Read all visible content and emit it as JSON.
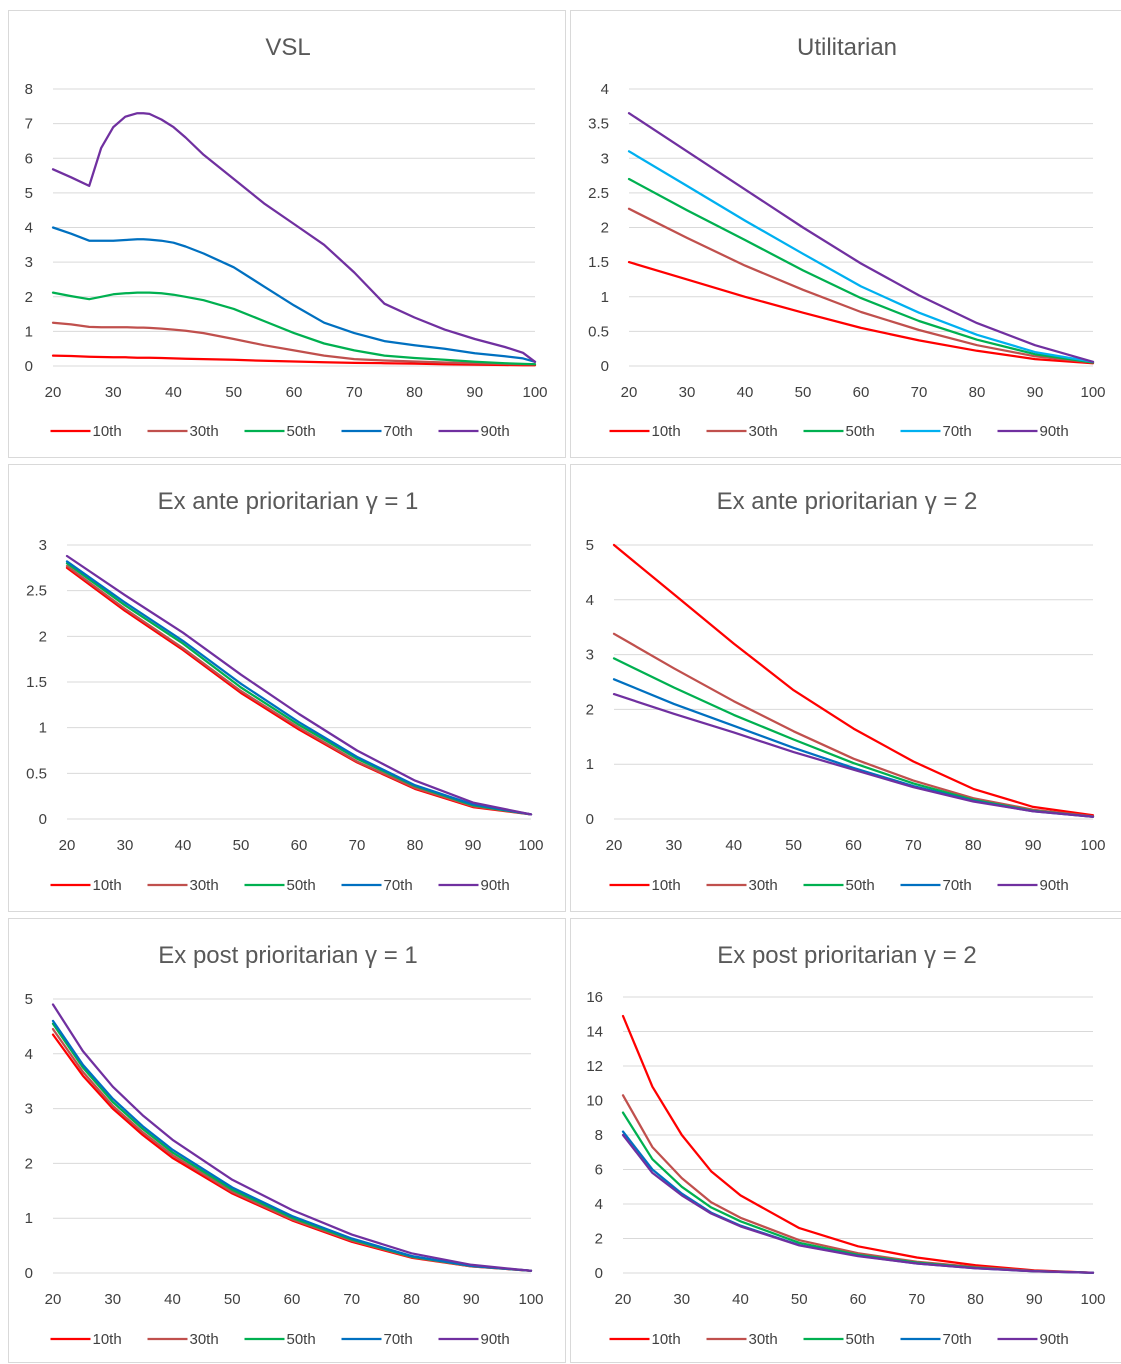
{
  "chart_data": [
    {
      "type": "line",
      "title": "VSL",
      "ylim": [
        0,
        8
      ],
      "yticks": [
        "0",
        "1",
        "2",
        "3",
        "4",
        "5",
        "6",
        "7",
        "8"
      ],
      "xticks": [
        "20",
        "30",
        "40",
        "50",
        "60",
        "70",
        "80",
        "90",
        "100"
      ],
      "x": [
        20,
        23,
        26,
        28,
        30,
        32,
        34,
        35,
        36,
        38,
        40,
        42,
        45,
        50,
        55,
        60,
        65,
        70,
        75,
        80,
        85,
        90,
        95,
        98,
        100
      ],
      "series": [
        {
          "name": "10th",
          "color": "#ff0000",
          "values": [
            0.3,
            0.29,
            0.27,
            0.26,
            0.25,
            0.25,
            0.24,
            0.24,
            0.24,
            0.23,
            0.22,
            0.21,
            0.2,
            0.18,
            0.15,
            0.13,
            0.11,
            0.09,
            0.08,
            0.07,
            0.05,
            0.04,
            0.03,
            0.02,
            0.02
          ]
        },
        {
          "name": "30th",
          "color": "#c0504d",
          "values": [
            1.25,
            1.2,
            1.13,
            1.12,
            1.12,
            1.12,
            1.11,
            1.11,
            1.1,
            1.08,
            1.05,
            1.02,
            0.95,
            0.78,
            0.6,
            0.45,
            0.3,
            0.2,
            0.16,
            0.13,
            0.1,
            0.08,
            0.06,
            0.05,
            0.05
          ]
        },
        {
          "name": "50th",
          "color": "#00b050",
          "values": [
            2.12,
            2.02,
            1.93,
            2.0,
            2.07,
            2.1,
            2.12,
            2.12,
            2.12,
            2.1,
            2.06,
            2.0,
            1.9,
            1.65,
            1.3,
            0.95,
            0.65,
            0.45,
            0.3,
            0.23,
            0.18,
            0.12,
            0.08,
            0.06,
            0.05
          ]
        },
        {
          "name": "70th",
          "color": "#0070c0",
          "values": [
            4.0,
            3.82,
            3.62,
            3.62,
            3.62,
            3.64,
            3.66,
            3.66,
            3.65,
            3.62,
            3.56,
            3.45,
            3.25,
            2.85,
            2.3,
            1.75,
            1.25,
            0.95,
            0.72,
            0.6,
            0.5,
            0.37,
            0.28,
            0.22,
            0.12
          ]
        },
        {
          "name": "90th",
          "color": "#7030a0",
          "values": [
            5.68,
            5.45,
            5.2,
            6.3,
            6.9,
            7.2,
            7.3,
            7.3,
            7.28,
            7.12,
            6.9,
            6.6,
            6.1,
            5.4,
            4.7,
            4.1,
            3.5,
            2.7,
            1.8,
            1.4,
            1.05,
            0.78,
            0.55,
            0.38,
            0.12
          ]
        }
      ]
    },
    {
      "type": "line",
      "title": "Utilitarian",
      "ylim": [
        0,
        4
      ],
      "yticks": [
        "0",
        "0.5",
        "1",
        "1.5",
        "2",
        "2.5",
        "3",
        "3.5",
        "4"
      ],
      "xticks": [
        "20",
        "30",
        "40",
        "50",
        "60",
        "70",
        "80",
        "90",
        "100"
      ],
      "x": [
        20,
        30,
        40,
        50,
        60,
        70,
        80,
        90,
        100
      ],
      "series": [
        {
          "name": "10th",
          "color": "#ff0000",
          "values": [
            1.5,
            1.25,
            1.0,
            0.77,
            0.55,
            0.37,
            0.22,
            0.1,
            0.04
          ]
        },
        {
          "name": "30th",
          "color": "#c0504d",
          "values": [
            2.27,
            1.85,
            1.45,
            1.1,
            0.78,
            0.52,
            0.3,
            0.14,
            0.05
          ]
        },
        {
          "name": "50th",
          "color": "#00b050",
          "values": [
            2.7,
            2.25,
            1.82,
            1.38,
            0.98,
            0.65,
            0.38,
            0.17,
            0.05
          ]
        },
        {
          "name": "70th",
          "color": "#00b0f0",
          "values": [
            3.1,
            2.6,
            2.1,
            1.62,
            1.15,
            0.77,
            0.45,
            0.2,
            0.06
          ]
        },
        {
          "name": "90th",
          "color": "#7030a0",
          "values": [
            3.65,
            3.1,
            2.55,
            2.0,
            1.48,
            1.02,
            0.62,
            0.3,
            0.06
          ]
        }
      ]
    },
    {
      "type": "line",
      "title": "Ex ante prioritarian γ = 1",
      "ylim": [
        0,
        3
      ],
      "yticks": [
        "0",
        "0.5",
        "1",
        "1.5",
        "2",
        "2.5",
        "3"
      ],
      "xticks": [
        "20",
        "30",
        "40",
        "50",
        "60",
        "70",
        "80",
        "90",
        "100"
      ],
      "x": [
        20,
        30,
        40,
        50,
        60,
        70,
        80,
        90,
        100
      ],
      "series": [
        {
          "name": "10th",
          "color": "#ff0000",
          "values": [
            2.75,
            2.28,
            1.85,
            1.38,
            0.98,
            0.62,
            0.33,
            0.13,
            0.05
          ]
        },
        {
          "name": "30th",
          "color": "#c0504d",
          "values": [
            2.77,
            2.3,
            1.87,
            1.4,
            1.0,
            0.63,
            0.34,
            0.14,
            0.05
          ]
        },
        {
          "name": "50th",
          "color": "#00b050",
          "values": [
            2.8,
            2.34,
            1.92,
            1.44,
            1.03,
            0.66,
            0.36,
            0.15,
            0.05
          ]
        },
        {
          "name": "70th",
          "color": "#0070c0",
          "values": [
            2.82,
            2.37,
            1.95,
            1.48,
            1.06,
            0.68,
            0.37,
            0.16,
            0.05
          ]
        },
        {
          "name": "90th",
          "color": "#7030a0",
          "values": [
            2.88,
            2.45,
            2.04,
            1.58,
            1.15,
            0.75,
            0.42,
            0.18,
            0.05
          ]
        }
      ]
    },
    {
      "type": "line",
      "title": "Ex ante prioritarian γ = 2",
      "ylim": [
        0,
        5
      ],
      "yticks": [
        "0",
        "1",
        "2",
        "3",
        "4",
        "5"
      ],
      "xticks": [
        "20",
        "30",
        "40",
        "50",
        "60",
        "70",
        "80",
        "90",
        "100"
      ],
      "x": [
        20,
        30,
        40,
        50,
        60,
        70,
        80,
        90,
        100
      ],
      "series": [
        {
          "name": "10th",
          "color": "#ff0000",
          "values": [
            5.0,
            4.1,
            3.2,
            2.35,
            1.65,
            1.05,
            0.55,
            0.22,
            0.07
          ]
        },
        {
          "name": "30th",
          "color": "#c0504d",
          "values": [
            3.38,
            2.75,
            2.15,
            1.6,
            1.1,
            0.7,
            0.38,
            0.17,
            0.05
          ]
        },
        {
          "name": "50th",
          "color": "#00b050",
          "values": [
            2.93,
            2.4,
            1.9,
            1.45,
            1.02,
            0.65,
            0.35,
            0.15,
            0.04
          ]
        },
        {
          "name": "70th",
          "color": "#0070c0",
          "values": [
            2.55,
            2.1,
            1.7,
            1.3,
            0.93,
            0.6,
            0.33,
            0.14,
            0.04
          ]
        },
        {
          "name": "90th",
          "color": "#7030a0",
          "values": [
            2.28,
            1.92,
            1.58,
            1.22,
            0.9,
            0.58,
            0.32,
            0.14,
            0.04
          ]
        }
      ]
    },
    {
      "type": "line",
      "title": "Ex post prioritarian γ = 1",
      "ylim": [
        0,
        5
      ],
      "yticks": [
        "0",
        "1",
        "2",
        "3",
        "4",
        "5"
      ],
      "xticks": [
        "20",
        "30",
        "40",
        "50",
        "60",
        "70",
        "80",
        "90",
        "100"
      ],
      "x": [
        20,
        25,
        30,
        35,
        40,
        50,
        60,
        70,
        80,
        90,
        100
      ],
      "series": [
        {
          "name": "10th",
          "color": "#ff0000",
          "values": [
            4.35,
            3.6,
            3.0,
            2.52,
            2.1,
            1.45,
            0.96,
            0.57,
            0.28,
            0.12,
            0.04
          ]
        },
        {
          "name": "30th",
          "color": "#c0504d",
          "values": [
            4.45,
            3.67,
            3.05,
            2.57,
            2.15,
            1.48,
            0.98,
            0.59,
            0.29,
            0.12,
            0.04
          ]
        },
        {
          "name": "50th",
          "color": "#00b050",
          "values": [
            4.55,
            3.75,
            3.12,
            2.63,
            2.2,
            1.52,
            1.01,
            0.61,
            0.3,
            0.13,
            0.04
          ]
        },
        {
          "name": "70th",
          "color": "#0070c0",
          "values": [
            4.6,
            3.8,
            3.18,
            2.68,
            2.25,
            1.56,
            1.04,
            0.63,
            0.31,
            0.13,
            0.04
          ]
        },
        {
          "name": "90th",
          "color": "#7030a0",
          "values": [
            4.9,
            4.05,
            3.4,
            2.88,
            2.43,
            1.7,
            1.15,
            0.7,
            0.36,
            0.15,
            0.04
          ]
        }
      ]
    },
    {
      "type": "line",
      "title": "Ex post prioritarian γ = 2",
      "ylim": [
        0,
        16
      ],
      "yticks": [
        "0",
        "2",
        "4",
        "6",
        "8",
        "10",
        "12",
        "14",
        "16"
      ],
      "xticks": [
        "20",
        "30",
        "40",
        "50",
        "60",
        "70",
        "80",
        "90",
        "100"
      ],
      "x": [
        20,
        25,
        30,
        35,
        40,
        50,
        60,
        70,
        80,
        90,
        100
      ],
      "series": [
        {
          "name": "10th",
          "color": "#ff0000",
          "values": [
            14.9,
            10.8,
            8.0,
            5.9,
            4.5,
            2.6,
            1.55,
            0.9,
            0.45,
            0.15,
            0.02
          ]
        },
        {
          "name": "30th",
          "color": "#c0504d",
          "values": [
            10.3,
            7.3,
            5.5,
            4.1,
            3.2,
            1.9,
            1.15,
            0.65,
            0.35,
            0.12,
            0.02
          ]
        },
        {
          "name": "50th",
          "color": "#00b050",
          "values": [
            9.3,
            6.6,
            5.0,
            3.8,
            3.0,
            1.75,
            1.05,
            0.6,
            0.3,
            0.1,
            0.02
          ]
        },
        {
          "name": "70th",
          "color": "#0070c0",
          "values": [
            8.2,
            6.0,
            4.6,
            3.5,
            2.75,
            1.62,
            1.0,
            0.55,
            0.28,
            0.1,
            0.02
          ]
        },
        {
          "name": "90th",
          "color": "#7030a0",
          "values": [
            8.0,
            5.8,
            4.5,
            3.45,
            2.7,
            1.6,
            0.98,
            0.55,
            0.28,
            0.1,
            0.02
          ]
        }
      ]
    }
  ]
}
